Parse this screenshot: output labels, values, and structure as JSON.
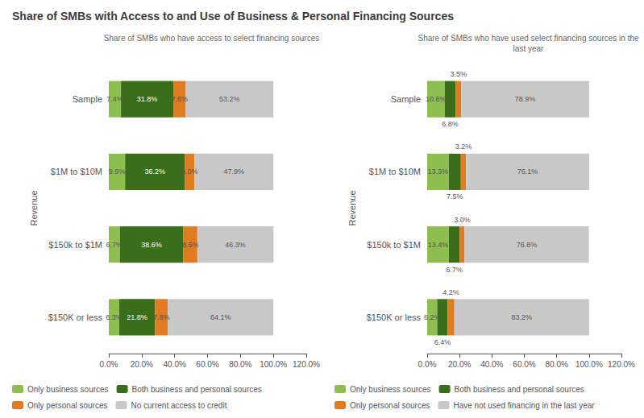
{
  "title": "Share of SMBs with Access to and Use of Business & Personal Financing Sources",
  "chart_data": [
    {
      "type": "bar",
      "orientation": "horizontal",
      "stacked": true,
      "data_labels": true,
      "grid": false,
      "legend": "bottom",
      "subtitle": "Share of SMBs who have access to select financing sources",
      "ylabel": "Revenue",
      "categories": [
        "Sample",
        "$1M to $10M",
        "$150k to $1M",
        "$150K or less"
      ],
      "xlim": [
        0,
        120
      ],
      "xticks": [
        {
          "value": 0,
          "label": "0.0%"
        },
        {
          "value": 20,
          "label": "20.0%"
        },
        {
          "value": 40,
          "label": "40.0%"
        },
        {
          "value": 60,
          "label": "60.0%"
        },
        {
          "value": 80,
          "label": "80.0%"
        },
        {
          "value": 100,
          "label": "100.0%"
        },
        {
          "value": 120,
          "label": "120.0%"
        }
      ],
      "series": [
        {
          "name": "Only business sources",
          "color": "#8fbe50",
          "values": [
            7.4,
            9.9,
            6.7,
            6.3
          ],
          "value_labels": [
            "7.4%",
            "9.9%",
            "6.7%",
            "6.3%"
          ]
        },
        {
          "name": "Both business and personal sources",
          "color": "#3a6e1a",
          "values": [
            31.8,
            36.2,
            38.6,
            21.8
          ],
          "value_labels": [
            "31.8%",
            "36.2%",
            "38.6%",
            "21.8%"
          ]
        },
        {
          "name": "Only personal sources",
          "color": "#e07b20",
          "values": [
            7.6,
            6.0,
            8.5,
            7.8
          ],
          "value_labels": [
            "7.6%",
            "6.0%",
            "8.5%",
            "7.8%"
          ]
        },
        {
          "name": "No current access to credit",
          "color": "#c8c8c8",
          "values": [
            53.2,
            47.9,
            46.3,
            64.1
          ],
          "value_labels": [
            "53.2%",
            "47.9%",
            "46.3%",
            "64.1%"
          ]
        }
      ]
    },
    {
      "type": "bar",
      "orientation": "horizontal",
      "stacked": true,
      "data_labels": true,
      "grid": false,
      "legend": "bottom",
      "subtitle": "Share of SMBs who have used select financing sources in the\nlast year",
      "ylabel": "Revenue",
      "categories": [
        "Sample",
        "$1M to $10M",
        "$150k to $1M",
        "$150K or less"
      ],
      "xlim": [
        0,
        120
      ],
      "xticks": [
        {
          "value": 0,
          "label": "0.0%"
        },
        {
          "value": 20,
          "label": "20.0%"
        },
        {
          "value": 40,
          "label": "40.0%"
        },
        {
          "value": 60,
          "label": "60.0%"
        },
        {
          "value": 80,
          "label": "80.0%"
        },
        {
          "value": 100,
          "label": "100.0%"
        },
        {
          "value": 120,
          "label": "120.0%"
        }
      ],
      "series": [
        {
          "name": "Only business sources",
          "color": "#8fbe50",
          "values": [
            10.8,
            13.3,
            13.4,
            6.2
          ],
          "value_labels": [
            "10.8%",
            "13.3%",
            "13.4%",
            "6.2%"
          ]
        },
        {
          "name": "Both business and personal sources",
          "color": "#3a6e1a",
          "values": [
            6.8,
            7.5,
            6.7,
            6.4
          ],
          "value_labels": [
            "6.8%",
            "7.5%",
            "6.7%",
            "6.4%"
          ]
        },
        {
          "name": "Only personal sources",
          "color": "#e07b20",
          "values": [
            3.5,
            3.2,
            3.0,
            4.2
          ],
          "value_labels": [
            "3.5%",
            "3.2%",
            "3.0%",
            "4.2%"
          ]
        },
        {
          "name": "Have not used financing in the last year",
          "color": "#c8c8c8",
          "values": [
            78.9,
            76.1,
            76.8,
            83.2
          ],
          "value_labels": [
            "78.9%",
            "76.1%",
            "76.8%",
            "83.2%"
          ]
        }
      ]
    }
  ]
}
